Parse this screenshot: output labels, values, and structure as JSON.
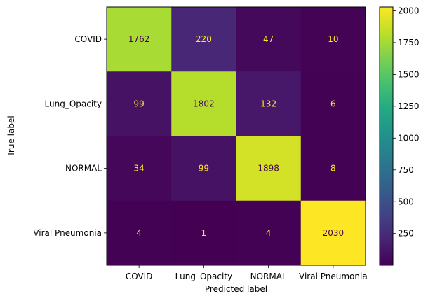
{
  "chart_data": {
    "type": "heatmap",
    "title": "",
    "xlabel": "Predicted label",
    "ylabel": "True label",
    "x_categories": [
      "COVID",
      "Lung_Opacity",
      "NORMAL",
      "Viral Pneumonia"
    ],
    "y_categories": [
      "COVID",
      "Lung_Opacity",
      "NORMAL",
      "Viral Pneumonia"
    ],
    "values": [
      [
        1762,
        220,
        47,
        10
      ],
      [
        99,
        1802,
        132,
        6
      ],
      [
        34,
        99,
        1898,
        8
      ],
      [
        4,
        1,
        4,
        2030
      ]
    ],
    "colormap": "viridis",
    "color_range": [
      1,
      2030
    ],
    "colorbar_ticks": [
      250,
      500,
      750,
      1000,
      1250,
      1500,
      1750,
      2000
    ],
    "colorbar_tick_labels": [
      "250",
      "500",
      "750",
      "1000",
      "1250",
      "1500",
      "1750",
      "2000"
    ],
    "cell_text_color_light": "#fde725",
    "cell_text_color_dark": "#440154"
  }
}
